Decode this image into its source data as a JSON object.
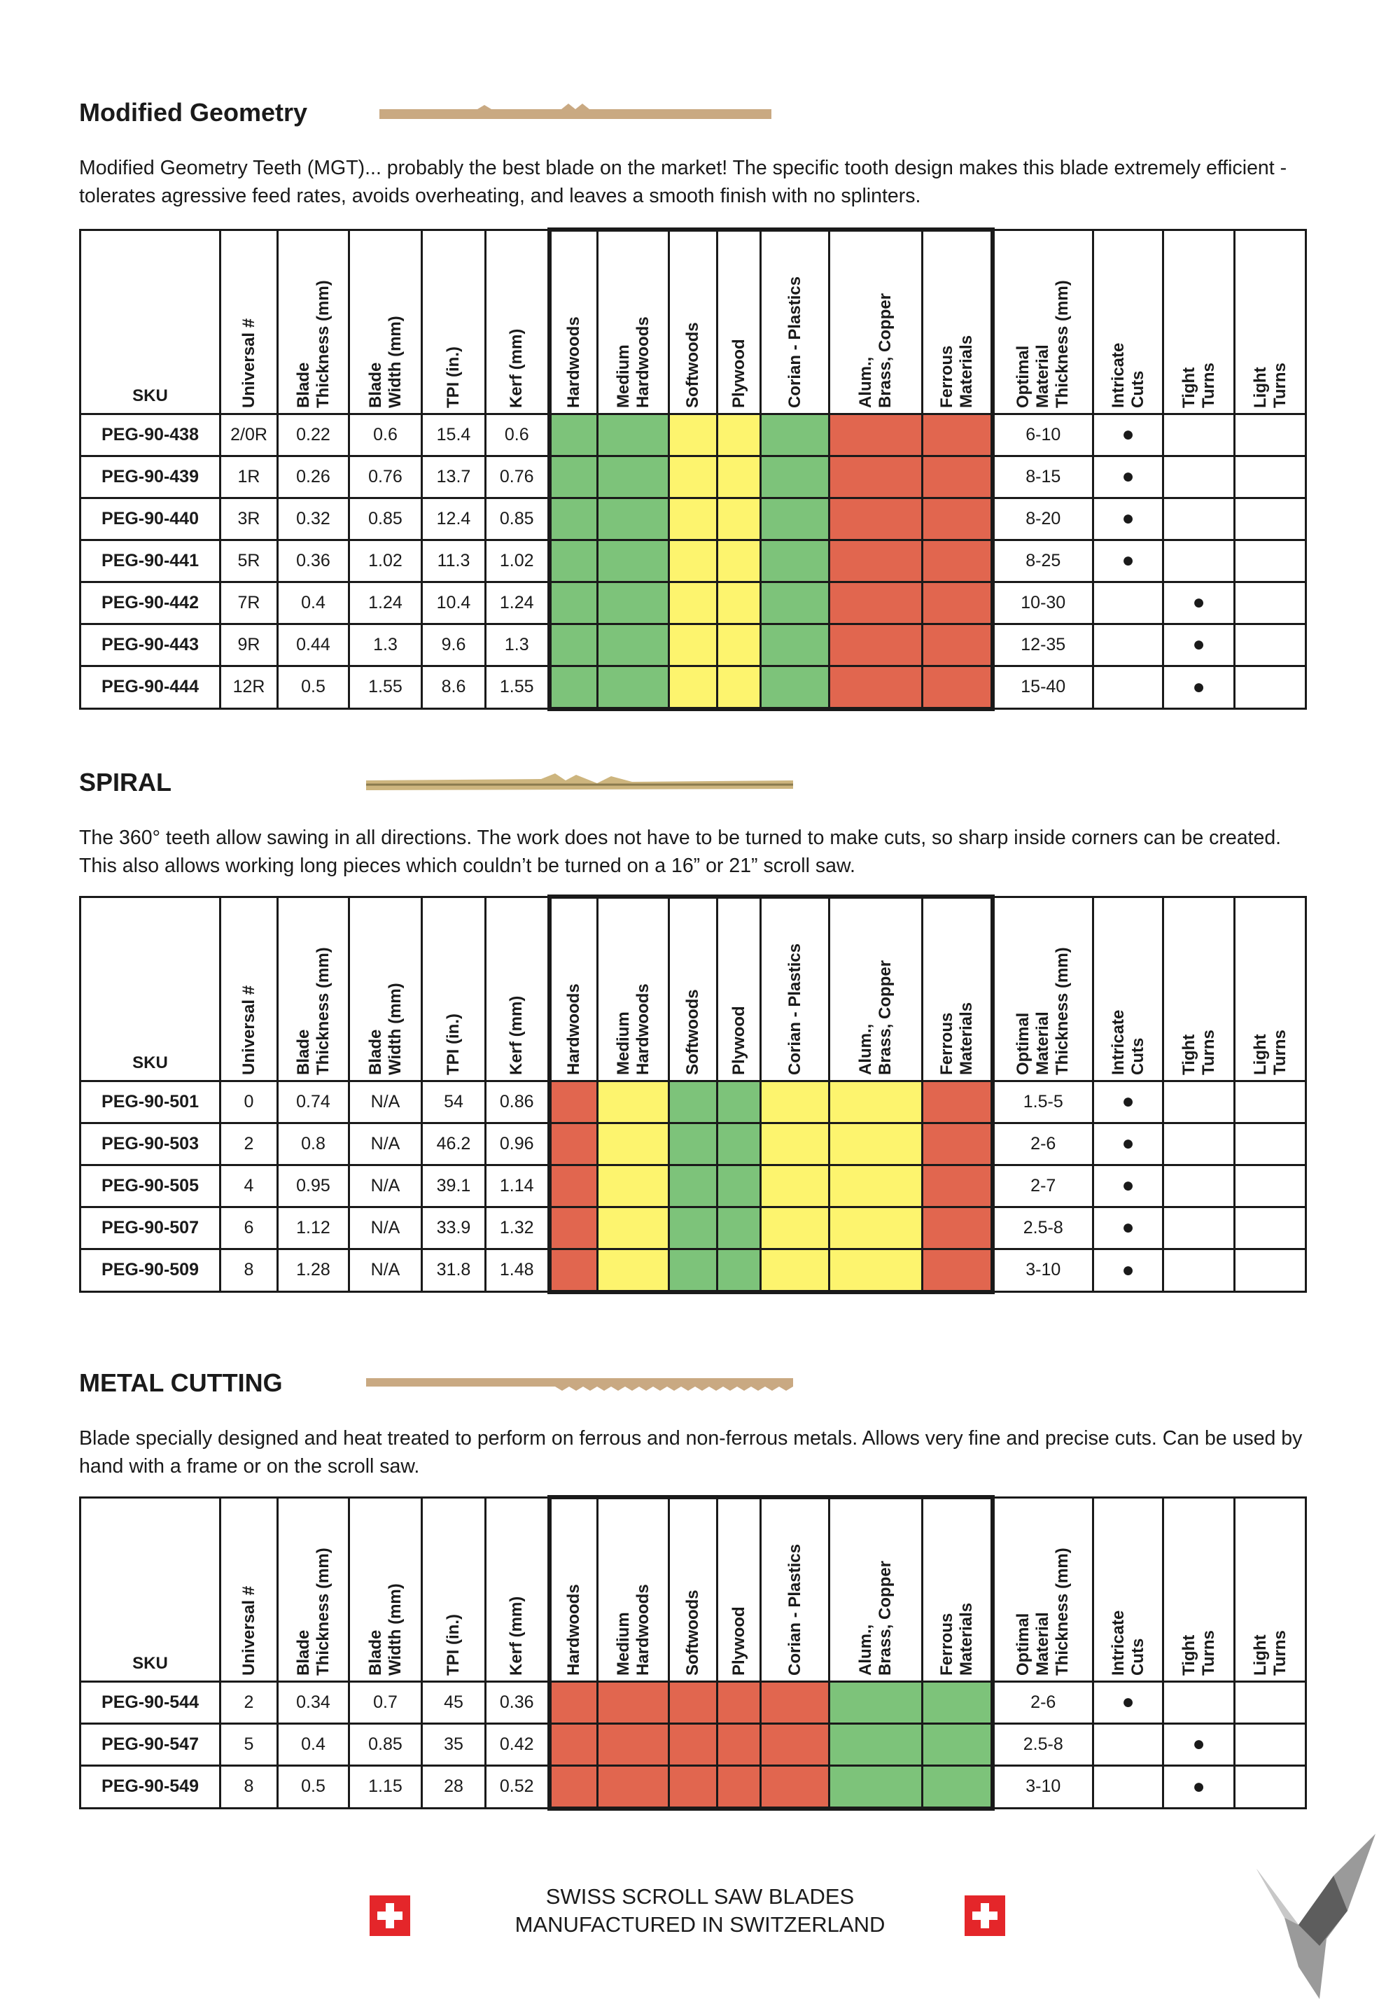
{
  "sections": [
    {
      "title": "Modified Geometry",
      "description": "Modified Geometry Teeth (MGT)... probably the best blade on the market! The specific tooth design makes this blade extremely efficient - tolerates agressive feed rates, avoids overheating, and leaves a smooth finish with no splinters.",
      "table": {
        "headers": [
          "SKU",
          "Universal #",
          "Blade\nThickness (mm)",
          "Blade\nWidth (mm)",
          "TPI (in.)",
          "Kerf (mm)",
          "Hardwoods",
          "Medium\nHardwoods",
          "Softwoods",
          "Plywood",
          "Corian  - Plastics",
          "Alum.,\nBrass, Copper",
          "Ferrous\nMaterials",
          "Optimal\nMaterial\nThickness (mm)",
          "Intricate\nCuts",
          "Tight\nTurns",
          "Light\nTurns"
        ],
        "rows": [
          {
            "cells": [
              "PEG-90-438",
              "2/0R",
              0.22,
              0.6,
              15.4,
              0.6
            ],
            "materials": [
              "#7dc37a",
              "#7dc37a",
              "#fdf46e",
              "#fdf46e",
              "#7dc37a",
              "#e1664f",
              "#e1664f"
            ],
            "after": [
              "6-10",
              "●",
              null,
              null
            ]
          },
          {
            "cells": [
              "PEG-90-439",
              "1R",
              0.26,
              0.76,
              13.7,
              0.76
            ],
            "materials": [
              "#7dc37a",
              "#7dc37a",
              "#fdf46e",
              "#fdf46e",
              "#7dc37a",
              "#e1664f",
              "#e1664f"
            ],
            "after": [
              "8-15",
              "●",
              null,
              null
            ]
          },
          {
            "cells": [
              "PEG-90-440",
              "3R",
              0.32,
              0.85,
              12.4,
              0.85
            ],
            "materials": [
              "#7dc37a",
              "#7dc37a",
              "#fdf46e",
              "#fdf46e",
              "#7dc37a",
              "#e1664f",
              "#e1664f"
            ],
            "after": [
              "8-20",
              "●",
              null,
              null
            ]
          },
          {
            "cells": [
              "PEG-90-441",
              "5R",
              0.36,
              1.02,
              11.3,
              1.02
            ],
            "materials": [
              "#7dc37a",
              "#7dc37a",
              "#fdf46e",
              "#fdf46e",
              "#7dc37a",
              "#e1664f",
              "#e1664f"
            ],
            "after": [
              "8-25",
              "●",
              null,
              null
            ]
          },
          {
            "cells": [
              "PEG-90-442",
              "7R",
              0.4,
              1.24,
              10.4,
              1.24
            ],
            "materials": [
              "#7dc37a",
              "#7dc37a",
              "#fdf46e",
              "#fdf46e",
              "#7dc37a",
              "#e1664f",
              "#e1664f"
            ],
            "after": [
              "10-30",
              null,
              "●",
              null
            ]
          },
          {
            "cells": [
              "PEG-90-443",
              "9R",
              0.44,
              1.3,
              9.6,
              1.3
            ],
            "materials": [
              "#7dc37a",
              "#7dc37a",
              "#fdf46e",
              "#fdf46e",
              "#7dc37a",
              "#e1664f",
              "#e1664f"
            ],
            "after": [
              "12-35",
              null,
              "●",
              null
            ]
          },
          {
            "cells": [
              "PEG-90-444",
              "12R",
              0.5,
              1.55,
              8.6,
              1.55
            ],
            "materials": [
              "#7dc37a",
              "#7dc37a",
              "#fdf46e",
              "#fdf46e",
              "#7dc37a",
              "#e1664f",
              "#e1664f"
            ],
            "after": [
              "15-40",
              null,
              "●",
              null
            ]
          }
        ]
      }
    },
    {
      "title": "SPIRAL",
      "description": "The 360° teeth allow sawing in all directions. The work does not have to be turned to make cuts, so sharp inside corners can be created. This also allows working long pieces which couldn’t be turned on a 16” or 21” scroll saw.",
      "table": {
        "headers": [
          "SKU",
          "Universal #",
          "Blade\nThickness (mm)",
          "Blade\nWidth (mm)",
          "TPI (in.)",
          "Kerf (mm)",
          "Hardwoods",
          "Medium\nHardwoods",
          "Softwoods",
          "Plywood",
          "Corian  - Plastics",
          "Alum.,\nBrass, Copper",
          "Ferrous\nMaterials",
          "Optimal\nMaterial\nThickness (mm)",
          "Intricate\nCuts",
          "Tight\nTurns",
          "Light\nTurns"
        ],
        "rows": [
          {
            "cells": [
              "PEG-90-501",
              0,
              0.74,
              "N/A",
              54,
              0.86
            ],
            "materials": [
              "#e1664f",
              "#fdf46e",
              "#7dc37a",
              "#7dc37a",
              "#fdf46e",
              "#fdf46e",
              "#e1664f"
            ],
            "after": [
              "1.5-5",
              "●",
              null,
              null
            ]
          },
          {
            "cells": [
              "PEG-90-503",
              2,
              0.8,
              "N/A",
              46.2,
              0.96
            ],
            "materials": [
              "#e1664f",
              "#fdf46e",
              "#7dc37a",
              "#7dc37a",
              "#fdf46e",
              "#fdf46e",
              "#e1664f"
            ],
            "after": [
              "2-6",
              "●",
              null,
              null
            ]
          },
          {
            "cells": [
              "PEG-90-505",
              4,
              0.95,
              "N/A",
              39.1,
              1.14
            ],
            "materials": [
              "#e1664f",
              "#fdf46e",
              "#7dc37a",
              "#7dc37a",
              "#fdf46e",
              "#fdf46e",
              "#e1664f"
            ],
            "after": [
              "2-7",
              "●",
              null,
              null
            ]
          },
          {
            "cells": [
              "PEG-90-507",
              6,
              1.12,
              "N/A",
              33.9,
              1.32
            ],
            "materials": [
              "#e1664f",
              "#fdf46e",
              "#7dc37a",
              "#7dc37a",
              "#fdf46e",
              "#fdf46e",
              "#e1664f"
            ],
            "after": [
              "2.5-8",
              "●",
              null,
              null
            ]
          },
          {
            "cells": [
              "PEG-90-509",
              8,
              1.28,
              "N/A",
              31.8,
              1.48
            ],
            "materials": [
              "#e1664f",
              "#fdf46e",
              "#7dc37a",
              "#7dc37a",
              "#fdf46e",
              "#fdf46e",
              "#e1664f"
            ],
            "after": [
              "3-10",
              "●",
              null,
              null
            ]
          }
        ]
      }
    },
    {
      "title": "METAL CUTTING",
      "description": "Blade specially designed and heat treated to perform on ferrous and non-ferrous metals. Allows very fine and precise cuts. Can be used by hand with a frame or on the scroll saw.",
      "table": {
        "headers": [
          "SKU",
          "Universal #",
          "Blade\nThickness (mm)",
          "Blade\nWidth (mm)",
          "TPI (in.)",
          "Kerf (mm)",
          "Hardwoods",
          "Medium\nHardwoods",
          "Softwoods",
          "Plywood",
          "Corian  - Plastics",
          "Alum.,\nBrass, Copper",
          "Ferrous\nMaterials",
          "Optimal\nMaterial\nThickness (mm)",
          "Intricate\nCuts",
          "Tight\nTurns",
          "Light\nTurns"
        ],
        "rows": [
          {
            "cells": [
              "PEG-90-544",
              2,
              0.34,
              0.7,
              45,
              0.36
            ],
            "materials": [
              "#e1664f",
              "#e1664f",
              "#e1664f",
              "#e1664f",
              "#e1664f",
              "#7dc37a",
              "#7dc37a"
            ],
            "after": [
              "2-6",
              "●",
              null,
              null
            ]
          },
          {
            "cells": [
              "PEG-90-547",
              5,
              0.4,
              0.85,
              35,
              0.42
            ],
            "materials": [
              "#e1664f",
              "#e1664f",
              "#e1664f",
              "#e1664f",
              "#e1664f",
              "#7dc37a",
              "#7dc37a"
            ],
            "after": [
              "2.5-8",
              null,
              "●",
              null
            ]
          },
          {
            "cells": [
              "PEG-90-549",
              8,
              0.5,
              1.15,
              28,
              0.52
            ],
            "materials": [
              "#e1664f",
              "#e1664f",
              "#e1664f",
              "#e1664f",
              "#e1664f",
              "#7dc37a",
              "#7dc37a"
            ],
            "after": [
              "3-10",
              null,
              "●",
              null
            ]
          }
        ]
      }
    }
  ],
  "footer": {
    "line1": "SWISS SCROLL SAW BLADES",
    "line2": "MANUFACTURED IN SWITZERLAND"
  }
}
